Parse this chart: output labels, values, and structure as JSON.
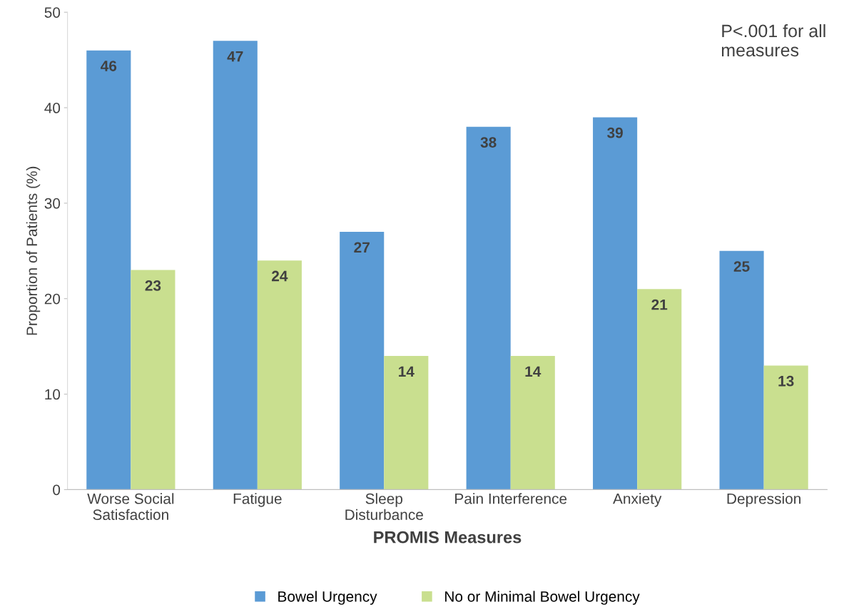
{
  "chart_data": {
    "type": "bar",
    "xlabel": "PROMIS Measures",
    "ylabel": "Proportion of Patients (%)",
    "categories": [
      "Worse Social\nSatisfaction",
      "Fatigue",
      "Sleep\nDisturbance",
      "Pain Interference",
      "Anxiety",
      "Depression"
    ],
    "series": [
      {
        "name": "Bowel Urgency",
        "color": "#5b9bd5",
        "values": [
          46,
          47,
          27,
          38,
          39,
          25
        ]
      },
      {
        "name": "No or Minimal Bowel Urgency",
        "color": "#c9df8f",
        "values": [
          23,
          24,
          14,
          14,
          21,
          13
        ]
      }
    ],
    "ylim": [
      0,
      50
    ],
    "yticks": [
      0,
      10,
      20,
      30,
      40,
      50
    ],
    "data_labels": true,
    "grid": false,
    "legend": "bottom",
    "annotations": [
      "P<.001 for all measures"
    ]
  }
}
